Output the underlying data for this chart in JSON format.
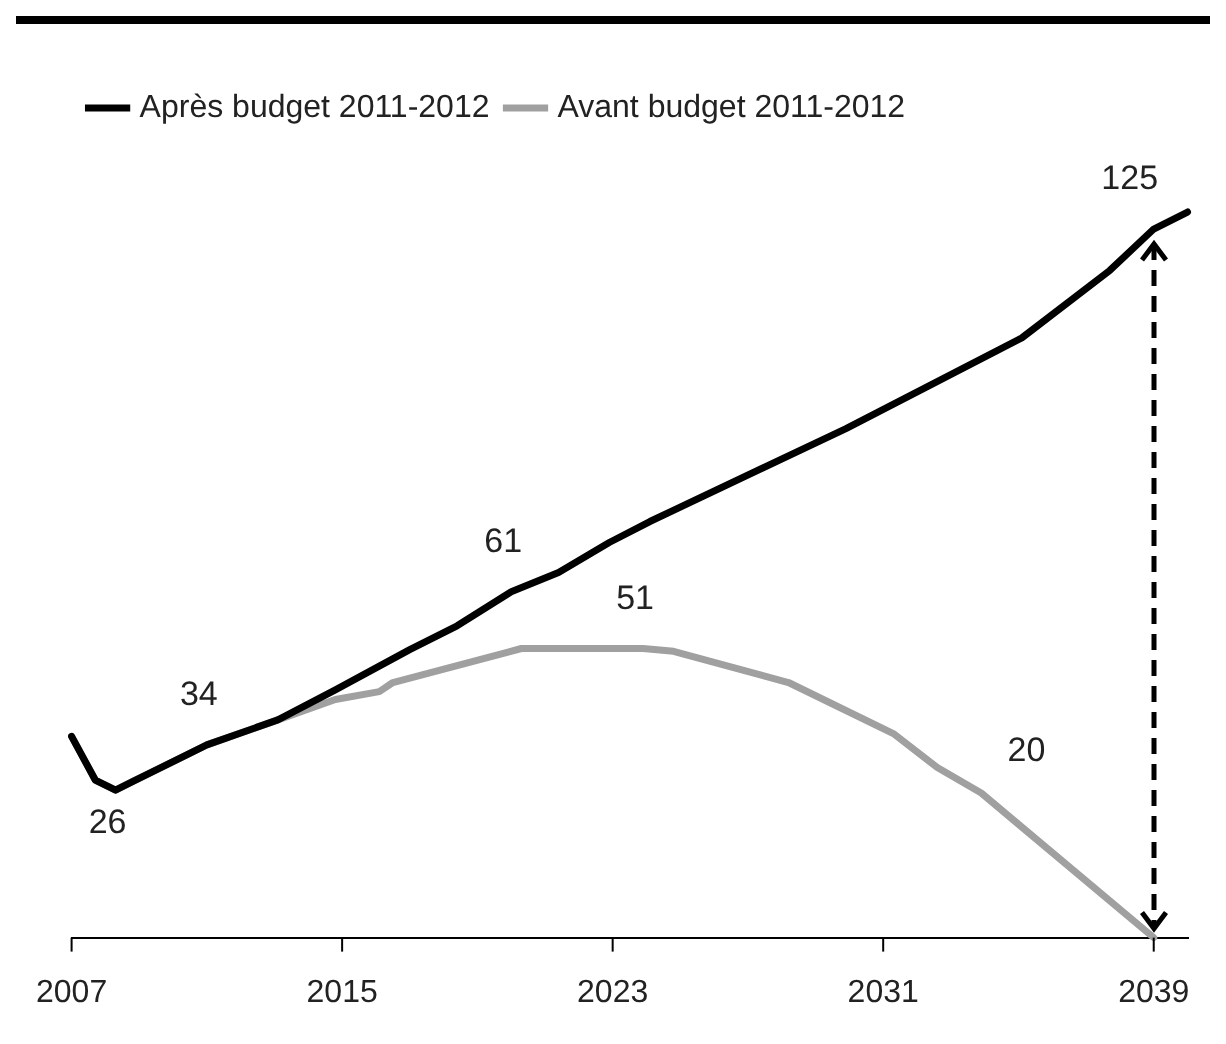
{
  "chart_data": {
    "type": "line",
    "x": [
      2007,
      2007.7,
      2008.3,
      2008.8,
      2011,
      2013.1,
      2014.8,
      2016.1,
      2016.5,
      2020.3,
      2023.9,
      2024.8,
      2028.2,
      2031.3,
      2032.6,
      2033.9,
      2035,
      2039
    ],
    "series": [
      {
        "name": "Après budget 2011-2012",
        "color": "#000000",
        "x": [
          2007,
          2007.7,
          2008.3,
          2008.8,
          2011,
          2013.1,
          2014.8,
          2017,
          2018.4,
          2020,
          2021.4,
          2022.9,
          2024.1,
          2029.9,
          2035.1,
          2037.7,
          2039,
          2040
        ],
        "values": [
          35.5,
          27.8,
          26,
          27.5,
          34,
          38.4,
          43.7,
          50.8,
          55,
          61,
          64.4,
          69.7,
          73.4,
          89.8,
          105.8,
          117.7,
          125,
          128
        ],
        "value_labels": [
          null,
          null,
          null,
          null,
          null,
          null,
          null,
          null,
          null,
          "61",
          null,
          null,
          null,
          null,
          null,
          null,
          "125",
          null
        ]
      },
      {
        "name": "Avant budget 2011-2012",
        "color": "#a0a0a0",
        "values": [
          35.5,
          27.8,
          26,
          27.5,
          34,
          38.4,
          42,
          43.4,
          45,
          51,
          51,
          50.5,
          45,
          36,
          30,
          25.5,
          20,
          0
        ],
        "value_labels": [
          null,
          null,
          "26",
          null,
          "34",
          null,
          null,
          null,
          null,
          null,
          "51",
          null,
          null,
          null,
          null,
          null,
          "20",
          null
        ]
      }
    ],
    "xlim": [
      2007,
      2040
    ],
    "xticks": [
      2007,
      2015,
      2023,
      2031,
      2039
    ],
    "legend": "top left",
    "marker": "none",
    "line_style": "solid"
  }
}
